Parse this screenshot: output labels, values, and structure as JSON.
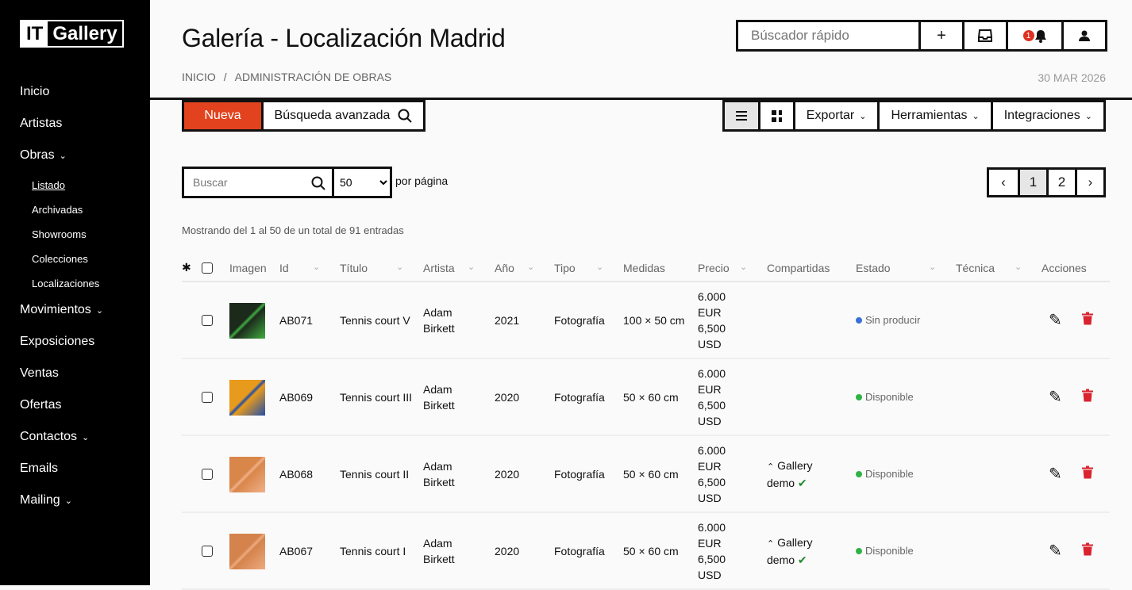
{
  "sidebar": {
    "logo": {
      "part1": "IT",
      "part2": "Gallery"
    },
    "items": [
      {
        "label": "Inicio"
      },
      {
        "label": "Artistas"
      },
      {
        "label": "Obras",
        "expandable": true
      },
      {
        "label": "Listado",
        "sub": true,
        "active": true
      },
      {
        "label": "Archivadas",
        "sub": true
      },
      {
        "label": "Showrooms",
        "sub": true
      },
      {
        "label": "Colecciones",
        "sub": true
      },
      {
        "label": "Localizaciones",
        "sub": true
      },
      {
        "label": "Movimientos",
        "expandable": true
      },
      {
        "label": "Exposiciones"
      },
      {
        "label": "Ventas"
      },
      {
        "label": "Ofertas"
      },
      {
        "label": "Contactos",
        "expandable": true
      },
      {
        "label": "Emails"
      },
      {
        "label": "Mailing",
        "expandable": true
      }
    ]
  },
  "header": {
    "title": "Galería - Localización Madrid",
    "breadcrumb": [
      "INICIO",
      "ADMINISTRACIÓN DE OBRAS"
    ],
    "date": "30 MAR 2026",
    "quick_search_placeholder": "Búscador rápido",
    "notification_count": "1"
  },
  "toolbar": {
    "new_label": "Nueva",
    "advanced_search_label": "Búsqueda avanzada",
    "export_label": "Exportar",
    "tools_label": "Herramientas",
    "integrations_label": "Integraciones",
    "active_view": "list"
  },
  "filters": {
    "search_placeholder": "Buscar",
    "per_page": "50",
    "per_page_label": "por página"
  },
  "pagination": {
    "pages": [
      "1",
      "2"
    ],
    "current": "1"
  },
  "summary": "Mostrando del 1 al 50 de un total de 91 entradas",
  "table": {
    "columns": [
      "Imagen",
      "Id",
      "Título",
      "Artista",
      "Año",
      "Tipo",
      "Medidas",
      "Precio",
      "Compartidas",
      "Estado",
      "Técnica",
      "Acciones"
    ],
    "rows": [
      {
        "id": "AB071",
        "title": "Tennis court V",
        "artist": "Adam Birkett",
        "year": "2021",
        "type": "Fotografía",
        "size": "100 × 50 cm",
        "price": "6.000 EUR 6,500 USD",
        "shared": "",
        "status": "Sin producir",
        "status_color": "#3b6fd8",
        "thumb": "#1c2a1c",
        "thumb2": "#3fae3f"
      },
      {
        "id": "AB069",
        "title": "Tennis court III",
        "artist": "Adam Birkett",
        "year": "2020",
        "type": "Fotografía",
        "size": "50 × 60 cm",
        "price": "6.000 EUR 6,500 USD",
        "shared": "",
        "status": "Disponible",
        "status_color": "#2fb344",
        "thumb": "#e89a1c",
        "thumb2": "#1f4fa8"
      },
      {
        "id": "AB068",
        "title": "Tennis court II",
        "artist": "Adam Birkett",
        "year": "2020",
        "type": "Fotografía",
        "size": "50 × 60 cm",
        "price": "6.000 EUR 6,500 USD",
        "shared": "Gallery demo",
        "status": "Disponible",
        "status_color": "#2fb344",
        "thumb": "#d9864a",
        "thumb2": "#f0b089"
      },
      {
        "id": "AB067",
        "title": "Tennis court I",
        "artist": "Adam Birkett",
        "year": "2020",
        "type": "Fotografía",
        "size": "50 × 60 cm",
        "price": "6.000 EUR 6,500 USD",
        "shared": "Gallery demo",
        "status": "Disponible",
        "status_color": "#2fb344",
        "thumb": "#d4834c",
        "thumb2": "#eeaa80"
      }
    ]
  },
  "colors": {
    "accent": "#e2431e",
    "delete": "#d9232e"
  }
}
